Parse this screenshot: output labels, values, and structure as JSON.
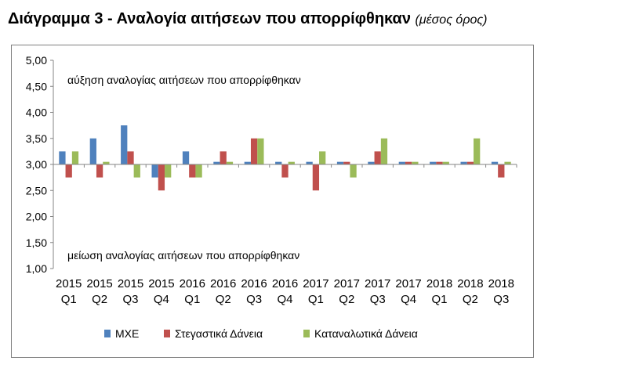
{
  "title": {
    "main": "Διάγραμμα 3 - Αναλογία αιτήσεων που απορρίφθηκαν",
    "sub": "(μέσος όρος)"
  },
  "chart_data": {
    "type": "bar",
    "categories": [
      [
        "2015",
        "Q1"
      ],
      [
        "2015",
        "Q2"
      ],
      [
        "2015",
        "Q3"
      ],
      [
        "2015",
        "Q4"
      ],
      [
        "2016",
        "Q1"
      ],
      [
        "2016",
        "Q2"
      ],
      [
        "2016",
        "Q3"
      ],
      [
        "2016",
        "Q4"
      ],
      [
        "2017",
        "Q1"
      ],
      [
        "2017",
        "Q2"
      ],
      [
        "2017",
        "Q3"
      ],
      [
        "2017",
        "Q4"
      ],
      [
        "2018",
        "Q1"
      ],
      [
        "2018",
        "Q2"
      ],
      [
        "2018",
        "Q3"
      ]
    ],
    "baseline": 3.0,
    "ylim": [
      1.0,
      5.0
    ],
    "ytick_step": 0.5,
    "ytick_labels": [
      "1,00",
      "1,50",
      "2,00",
      "2,50",
      "3,00",
      "3,50",
      "4,00",
      "4,50",
      "5,00"
    ],
    "grid": false,
    "legend_position": "bottom",
    "annotations": {
      "top": "αύξηση αναλογίας αιτήσεων που απορρίφθηκαν",
      "bottom": "μείωση αναλογίας αιτήσεων που απορρίφθηκαν"
    },
    "series": [
      {
        "name": "ΜΧΕ",
        "color": "#4f81bd",
        "values": [
          3.25,
          3.5,
          3.75,
          2.75,
          3.25,
          3.05,
          3.05,
          3.05,
          3.05,
          3.05,
          3.05,
          3.05,
          3.05,
          3.05,
          3.05
        ]
      },
      {
        "name": "Στεγαστικά Δάνεια",
        "color": "#c0504d",
        "values": [
          2.75,
          2.75,
          3.25,
          2.5,
          2.75,
          3.25,
          3.5,
          2.75,
          2.5,
          3.05,
          3.25,
          3.05,
          3.05,
          3.05,
          2.75
        ]
      },
      {
        "name": "Καταναλωτικά Δάνεια",
        "color": "#9bbb59",
        "values": [
          3.25,
          3.05,
          2.75,
          2.75,
          2.75,
          3.05,
          3.5,
          3.05,
          3.25,
          2.75,
          3.5,
          3.05,
          3.05,
          3.5,
          3.05
        ]
      }
    ]
  }
}
